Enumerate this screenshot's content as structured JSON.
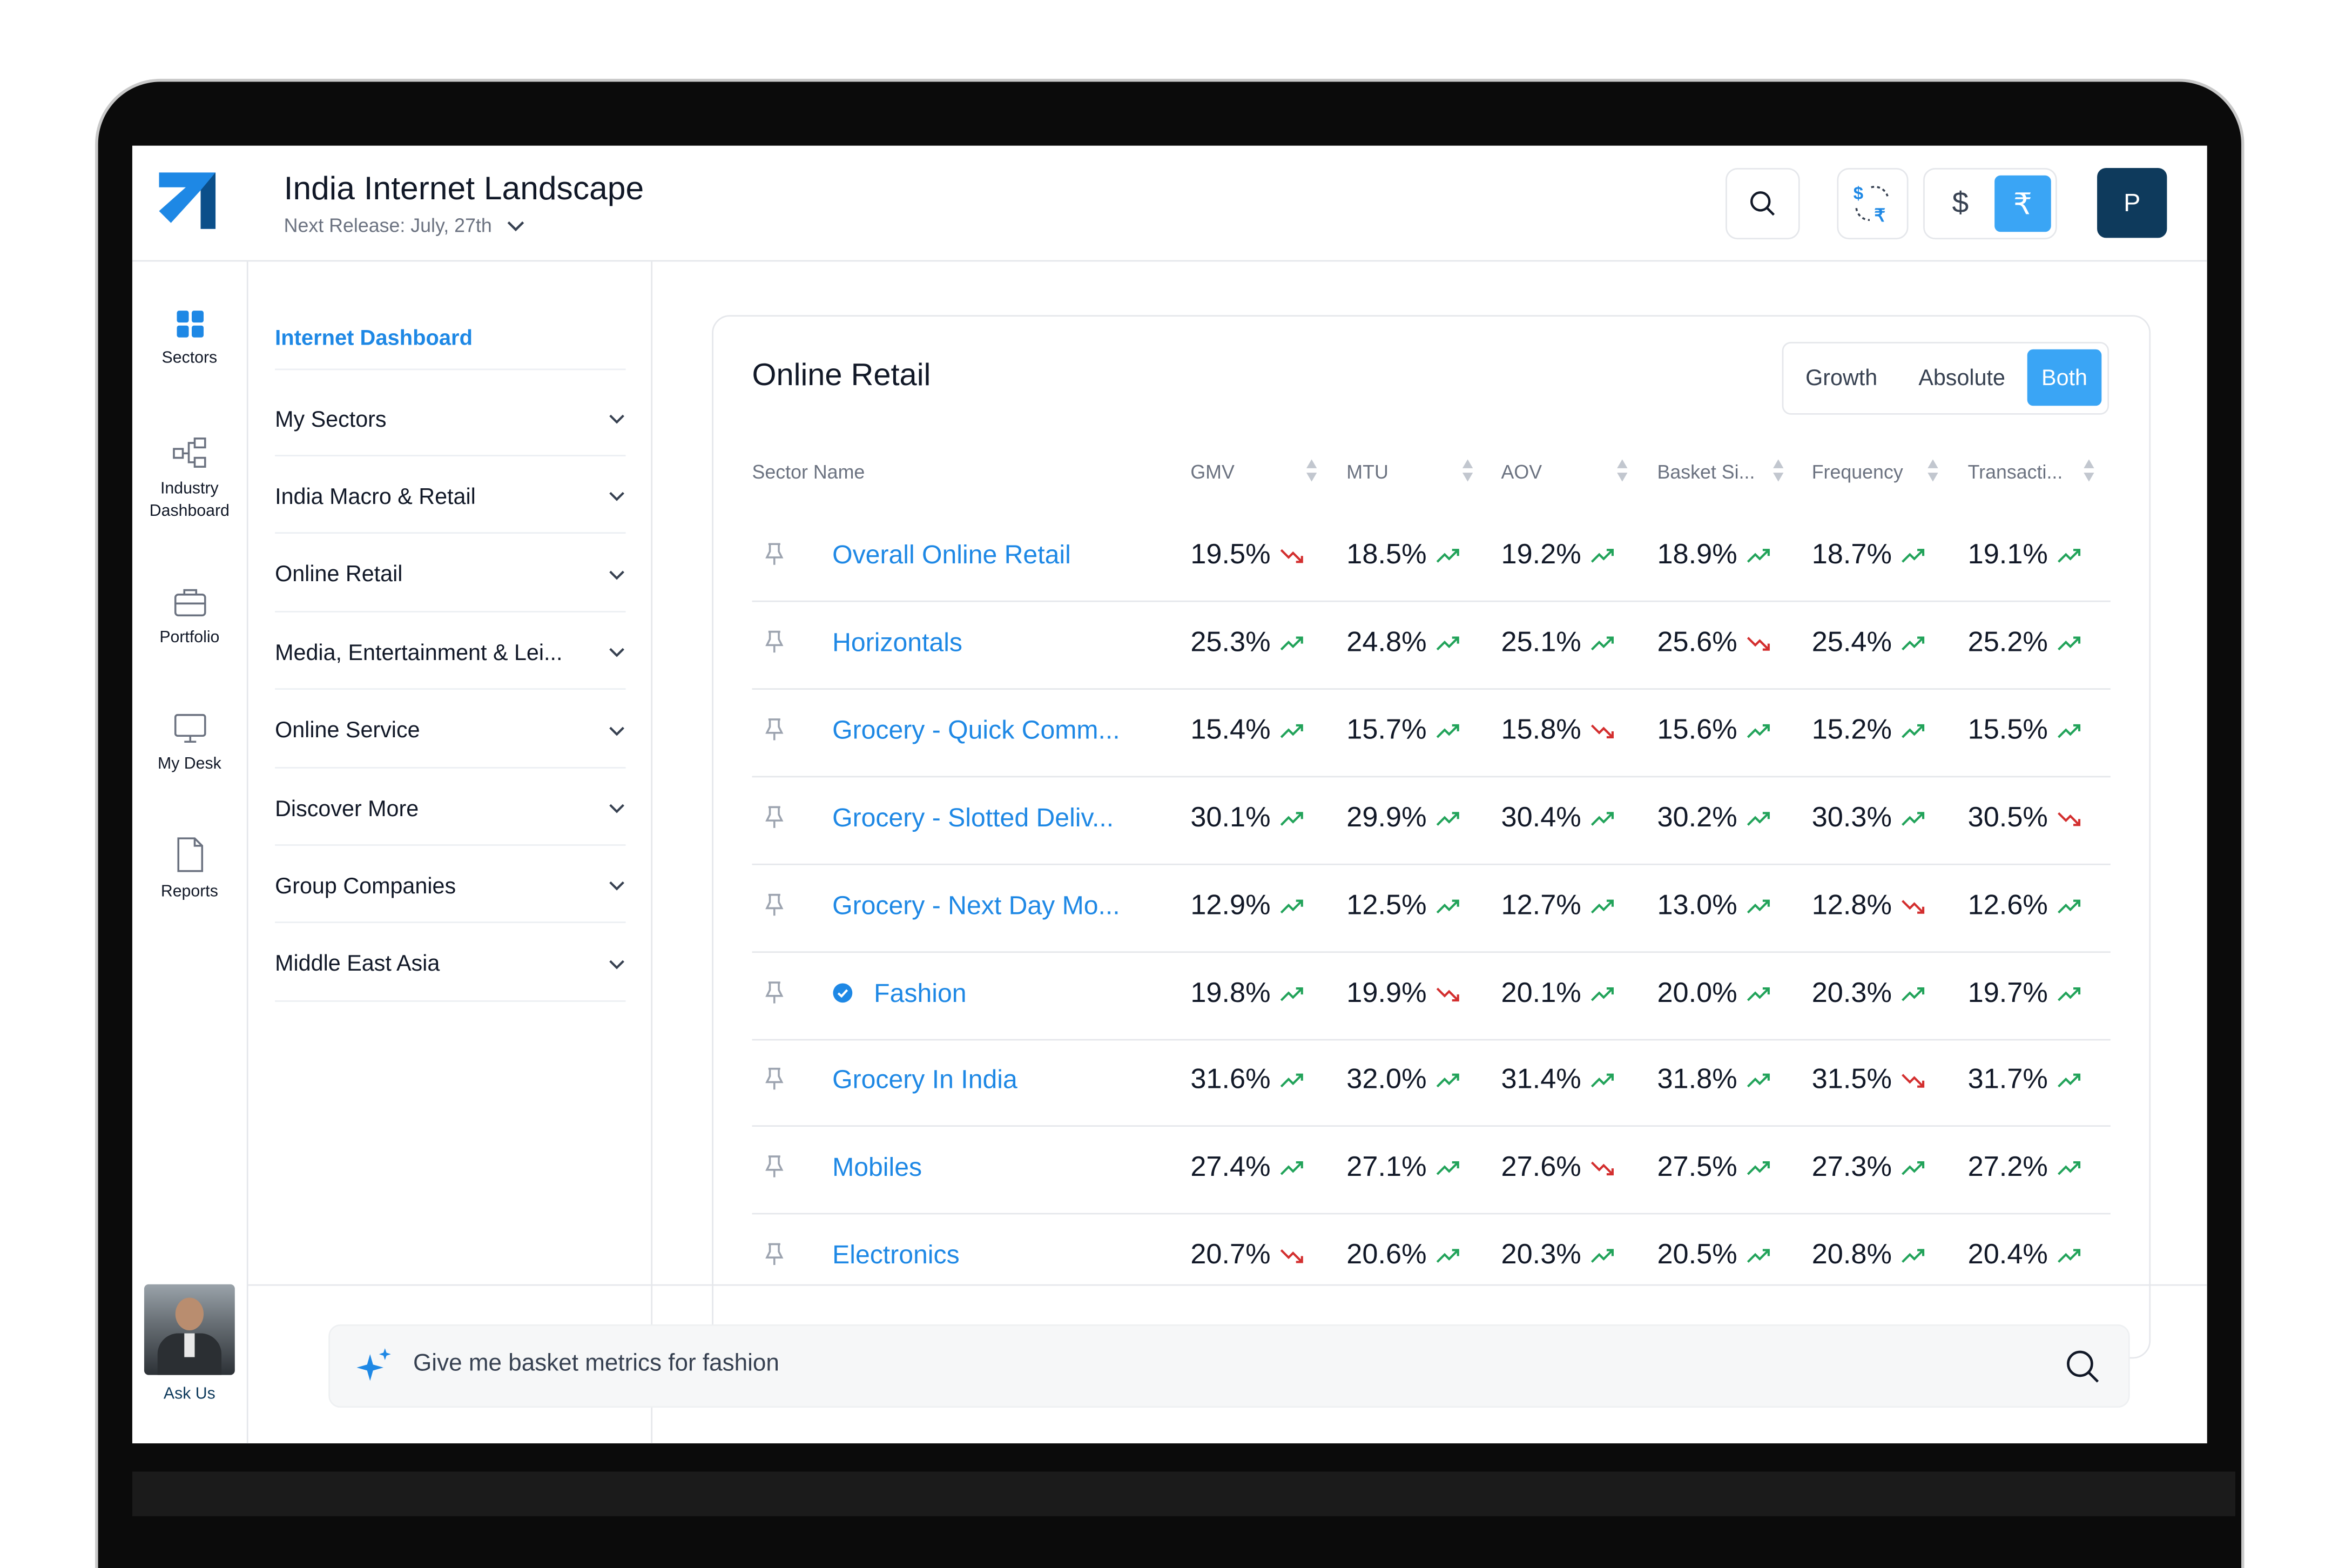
{
  "header": {
    "title": "India Internet Landscape",
    "release": "Next Release: July, 27th",
    "currency_usd": "$",
    "currency_inr": "₹",
    "user_initial": "P",
    "fx_usd_symbol": "$",
    "fx_inr_symbol": "₹"
  },
  "rail": [
    {
      "label": "Sectors",
      "icon": "grid-icon"
    },
    {
      "label": "Industry Dashboard",
      "icon": "hierarchy-icon"
    },
    {
      "label": "Portfolio",
      "icon": "briefcase-icon"
    },
    {
      "label": "My Desk",
      "icon": "monitor-icon"
    },
    {
      "label": "Reports",
      "icon": "document-icon"
    }
  ],
  "ask_us": {
    "label": "Ask Us"
  },
  "nav": {
    "active": "Internet Dashboard",
    "items": [
      "My Sectors",
      "India Macro & Retail",
      "Online Retail",
      "Media, Entertainment & Lei...",
      "Online Service",
      "Discover More",
      "Group Companies",
      "Middle East Asia"
    ]
  },
  "card": {
    "title": "Online Retail",
    "toggle": {
      "growth": "Growth",
      "absolute": "Absolute",
      "both": "Both",
      "selected": "Both"
    },
    "columns": [
      "Sector Name",
      "GMV",
      "MTU",
      "AOV",
      "Basket Si...",
      "Frequency",
      "Transacti..."
    ],
    "rows": [
      {
        "name": "Overall Online Retail",
        "verified": false,
        "values": [
          "19.5%",
          "18.5%",
          "19.2%",
          "18.9%",
          "18.7%",
          "19.1%"
        ],
        "trends": [
          "down",
          "up",
          "up",
          "up",
          "up",
          "up"
        ]
      },
      {
        "name": "Horizontals",
        "verified": false,
        "values": [
          "25.3%",
          "24.8%",
          "25.1%",
          "25.6%",
          "25.4%",
          "25.2%"
        ],
        "trends": [
          "up",
          "up",
          "up",
          "down",
          "up",
          "up"
        ]
      },
      {
        "name": "Grocery - Quick Comm...",
        "verified": false,
        "values": [
          "15.4%",
          "15.7%",
          "15.8%",
          "15.6%",
          "15.2%",
          "15.5%"
        ],
        "trends": [
          "up",
          "up",
          "down",
          "up",
          "up",
          "up"
        ]
      },
      {
        "name": "Grocery - Slotted Deliv...",
        "verified": false,
        "values": [
          "30.1%",
          "29.9%",
          "30.4%",
          "30.2%",
          "30.3%",
          "30.5%"
        ],
        "trends": [
          "up",
          "up",
          "up",
          "up",
          "up",
          "down"
        ]
      },
      {
        "name": "Grocery - Next Day Mo...",
        "verified": false,
        "values": [
          "12.9%",
          "12.5%",
          "12.7%",
          "13.0%",
          "12.8%",
          "12.6%"
        ],
        "trends": [
          "up",
          "up",
          "up",
          "up",
          "down",
          "up"
        ]
      },
      {
        "name": "Fashion",
        "verified": true,
        "values": [
          "19.8%",
          "19.9%",
          "20.1%",
          "20.0%",
          "20.3%",
          "19.7%"
        ],
        "trends": [
          "up",
          "down",
          "up",
          "up",
          "up",
          "up"
        ]
      },
      {
        "name": "Grocery In India",
        "verified": false,
        "values": [
          "31.6%",
          "32.0%",
          "31.4%",
          "31.8%",
          "31.5%",
          "31.7%"
        ],
        "trends": [
          "up",
          "up",
          "up",
          "up",
          "down",
          "up"
        ]
      },
      {
        "name": "Mobiles",
        "verified": false,
        "values": [
          "27.4%",
          "27.1%",
          "27.6%",
          "27.5%",
          "27.3%",
          "27.2%"
        ],
        "trends": [
          "up",
          "up",
          "down",
          "up",
          "up",
          "up"
        ]
      },
      {
        "name": "Electronics",
        "verified": false,
        "values": [
          "20.7%",
          "20.6%",
          "20.3%",
          "20.5%",
          "20.8%",
          "20.4%"
        ],
        "trends": [
          "down",
          "up",
          "up",
          "up",
          "up",
          "up"
        ]
      }
    ]
  },
  "ask_bar": {
    "text": "Give me basket metrics for fashion"
  },
  "colors": {
    "accent": "#1e88e5",
    "toggle_active": "#3aa5f5",
    "avatar_bg": "#0e3a5c",
    "trend_up": "#22a35a",
    "trend_down": "#d32f2f"
  }
}
